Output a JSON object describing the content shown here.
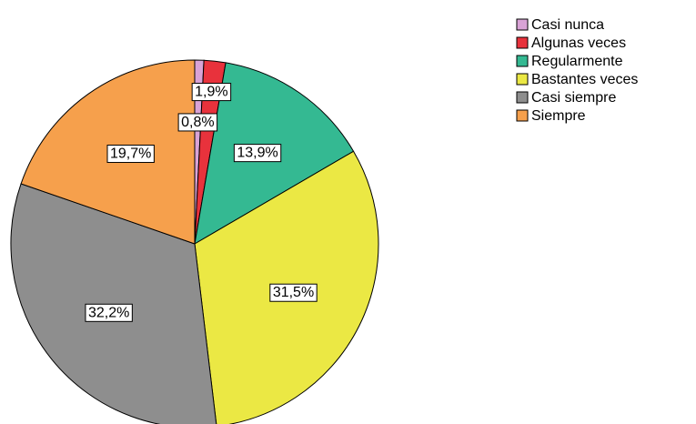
{
  "chart_data": {
    "type": "pie",
    "categories": [
      "Casi nunca",
      "Algunas veces",
      "Regularmente",
      "Bastantes veces",
      "Casi siempre",
      "Siempre"
    ],
    "values": [
      0.8,
      1.9,
      13.9,
      31.5,
      32.2,
      19.7
    ],
    "value_labels": [
      "0,8%",
      "1,9%",
      "13,9%",
      "31,5%",
      "32,2%",
      "19,7%"
    ],
    "colors": [
      "#d9a3d6",
      "#e8323c",
      "#34b992",
      "#ebe844",
      "#8e8e8e",
      "#f6a04c"
    ],
    "legend": "top-right"
  }
}
